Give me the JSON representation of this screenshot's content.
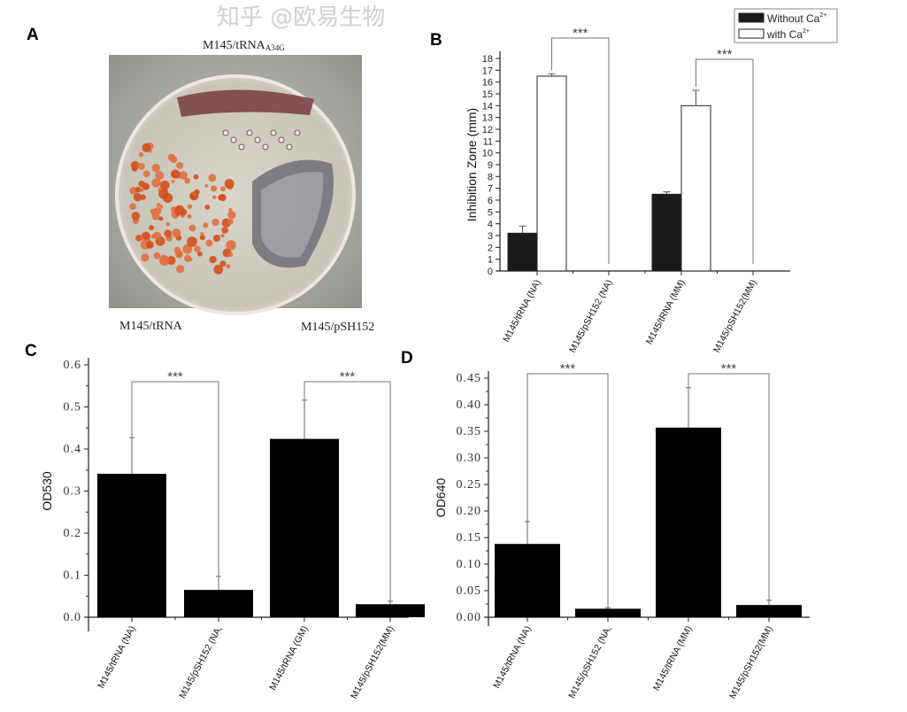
{
  "panels": {
    "A": {
      "letter": "A",
      "labels": {
        "top": "M145/tRNA",
        "top_subscript": "A34G",
        "bottom_left": "M145/tRNA",
        "bottom_right": "M145/pSH152"
      }
    },
    "B": {
      "letter": "B"
    },
    "C": {
      "letter": "C"
    },
    "D": {
      "letter": "D"
    }
  },
  "watermark": "知乎 @欧易生物",
  "colors": {
    "bar_dark": "#1a1a1a",
    "bar_black": "#000000",
    "bar_white": "#ffffff",
    "bracket": "#777777"
  },
  "chart_data": [
    {
      "id": "B",
      "type": "bar",
      "categories": [
        "M145/tRNA (NA)",
        "M145/pSH152 (NA)",
        "M145/tRNA (MM)",
        "M145/pSH152(MM)"
      ],
      "series": [
        {
          "name": "Without Ca",
          "name_sup": "2+",
          "color": "#1a1a1a",
          "values": [
            3.2,
            0,
            6.5,
            0
          ],
          "errors": [
            0.6,
            0,
            0.2,
            0
          ]
        },
        {
          "name": "with Ca",
          "name_sup": "2+",
          "color": "#ffffff",
          "values": [
            16.5,
            0,
            14.0,
            0
          ],
          "errors": [
            0.2,
            0,
            1.3,
            0
          ]
        }
      ],
      "ylabel": "Inhibition Zone (mm)",
      "ylim": [
        0,
        18
      ],
      "yticks": [
        0,
        1,
        2,
        3,
        4,
        5,
        6,
        7,
        8,
        9,
        10,
        11,
        12,
        13,
        14,
        15,
        16,
        17,
        18
      ],
      "legend": "top-right",
      "significance": [
        {
          "from": 0,
          "to": 1,
          "label": "***"
        },
        {
          "from": 2,
          "to": 3,
          "label": "***"
        }
      ],
      "grid": false
    },
    {
      "id": "C",
      "type": "bar",
      "categories": [
        "M145/tRNA (NA)",
        "M145/pSH152 (NA,",
        "M145/tRNA (GM)",
        "M145/pSH152(MM)"
      ],
      "values": [
        0.341,
        0.065,
        0.424,
        0.031
      ],
      "errors": [
        0.086,
        0.032,
        0.092,
        0.007
      ],
      "ylabel": "OD530",
      "ylim": [
        0,
        0.6
      ],
      "yticks": [
        "0.0",
        "0.1",
        "0.2",
        "0.3",
        "0.4",
        "0.5",
        "0.6"
      ],
      "significance": [
        {
          "from": 0,
          "to": 1,
          "label": "***"
        },
        {
          "from": 2,
          "to": 3,
          "label": "***"
        }
      ],
      "grid": false
    },
    {
      "id": "D",
      "type": "bar",
      "categories": [
        "M145/tRNA (NA)",
        "M145/pSH152 (NA,",
        "M145/tRNA (MM)",
        "M145/pSH152(MM)"
      ],
      "values": [
        0.138,
        0.016,
        0.357,
        0.023
      ],
      "errors": [
        0.042,
        0.002,
        0.075,
        0.009
      ],
      "ylabel": "OD640",
      "ylim": [
        0,
        0.45
      ],
      "yticks": [
        "0.00",
        "0.05",
        "0.10",
        "0.15",
        "0.20",
        "0.25",
        "0.30",
        "0.35",
        "0.40",
        "0.45"
      ],
      "significance": [
        {
          "from": 0,
          "to": 1,
          "label": "***"
        },
        {
          "from": 2,
          "to": 3,
          "label": "***"
        }
      ],
      "grid": false
    }
  ]
}
